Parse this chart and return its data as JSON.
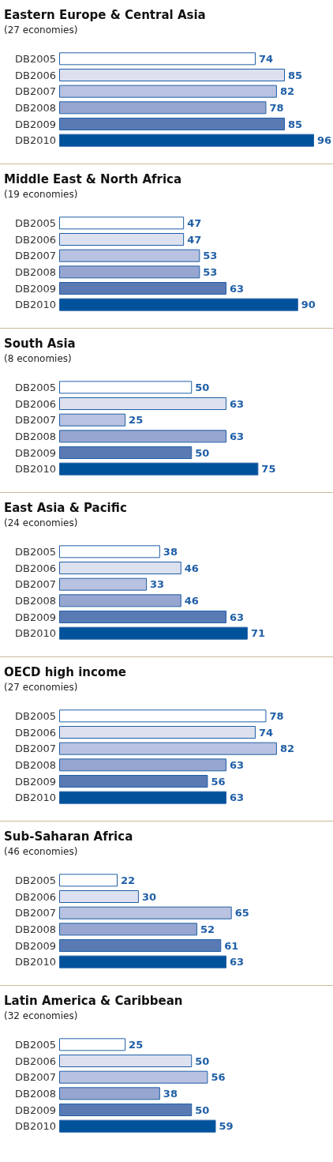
{
  "chart_data": [
    {
      "type": "bar",
      "orientation": "horizontal",
      "title": "Eastern Europe & Central Asia",
      "subtitle": "(27 economies)",
      "categories": [
        "DB2005",
        "DB2006",
        "DB2007",
        "DB2008",
        "DB2009",
        "DB2010"
      ],
      "values": [
        74,
        85,
        82,
        78,
        85,
        96
      ],
      "colors": [
        "#ffffff",
        "#dde1ef",
        "#b9c2e0",
        "#97a6d0",
        "#5a7ab4",
        "#00529b"
      ],
      "tick_labels": "y",
      "data_labels": true
    },
    {
      "type": "bar",
      "orientation": "horizontal",
      "title": "Middle East & North Africa",
      "subtitle": "(19 economies)",
      "categories": [
        "DB2005",
        "DB2006",
        "DB2007",
        "DB2008",
        "DB2009",
        "DB2010"
      ],
      "values": [
        47,
        47,
        53,
        53,
        63,
        90
      ],
      "colors": [
        "#ffffff",
        "#dde1ef",
        "#b9c2e0",
        "#97a6d0",
        "#5a7ab4",
        "#00529b"
      ],
      "tick_labels": "y",
      "data_labels": true
    },
    {
      "type": "bar",
      "orientation": "horizontal",
      "title": "South Asia",
      "subtitle": "(8 economies)",
      "categories": [
        "DB2005",
        "DB2006",
        "DB2007",
        "DB2008",
        "DB2009",
        "DB2010"
      ],
      "values": [
        50,
        63,
        25,
        63,
        50,
        75
      ],
      "colors": [
        "#ffffff",
        "#dde1ef",
        "#b9c2e0",
        "#97a6d0",
        "#5a7ab4",
        "#00529b"
      ],
      "tick_labels": "y",
      "data_labels": true
    },
    {
      "type": "bar",
      "orientation": "horizontal",
      "title": "East Asia & Pacific",
      "subtitle": "(24 economies)",
      "categories": [
        "DB2005",
        "DB2006",
        "DB2007",
        "DB2008",
        "DB2009",
        "DB2010"
      ],
      "values": [
        38,
        46,
        33,
        46,
        63,
        71
      ],
      "colors": [
        "#ffffff",
        "#dde1ef",
        "#b9c2e0",
        "#97a6d0",
        "#5a7ab4",
        "#00529b"
      ],
      "tick_labels": "y",
      "data_labels": true
    },
    {
      "type": "bar",
      "orientation": "horizontal",
      "title": "OECD high income",
      "subtitle": "(27 economies)",
      "categories": [
        "DB2005",
        "DB2006",
        "DB2007",
        "DB2008",
        "DB2009",
        "DB2010"
      ],
      "values": [
        78,
        74,
        82,
        63,
        56,
        63
      ],
      "colors": [
        "#ffffff",
        "#dde1ef",
        "#b9c2e0",
        "#97a6d0",
        "#5a7ab4",
        "#00529b"
      ],
      "tick_labels": "y",
      "data_labels": true
    },
    {
      "type": "bar",
      "orientation": "horizontal",
      "title": "Sub-Saharan Africa",
      "subtitle": "(46 economies)",
      "categories": [
        "DB2005",
        "DB2006",
        "DB2007",
        "DB2008",
        "DB2009",
        "DB2010"
      ],
      "values": [
        22,
        30,
        65,
        52,
        61,
        63
      ],
      "colors": [
        "#ffffff",
        "#dde1ef",
        "#b9c2e0",
        "#97a6d0",
        "#5a7ab4",
        "#00529b"
      ],
      "tick_labels": "y",
      "data_labels": true
    },
    {
      "type": "bar",
      "orientation": "horizontal",
      "title": "Latin America & Caribbean",
      "subtitle": "(32 economies)",
      "categories": [
        "DB2005",
        "DB2006",
        "DB2007",
        "DB2008",
        "DB2009",
        "DB2010"
      ],
      "values": [
        25,
        50,
        56,
        38,
        50,
        59
      ],
      "colors": [
        "#ffffff",
        "#dde1ef",
        "#b9c2e0",
        "#97a6d0",
        "#5a7ab4",
        "#00529b"
      ],
      "tick_labels": "y",
      "data_labels": true
    }
  ]
}
